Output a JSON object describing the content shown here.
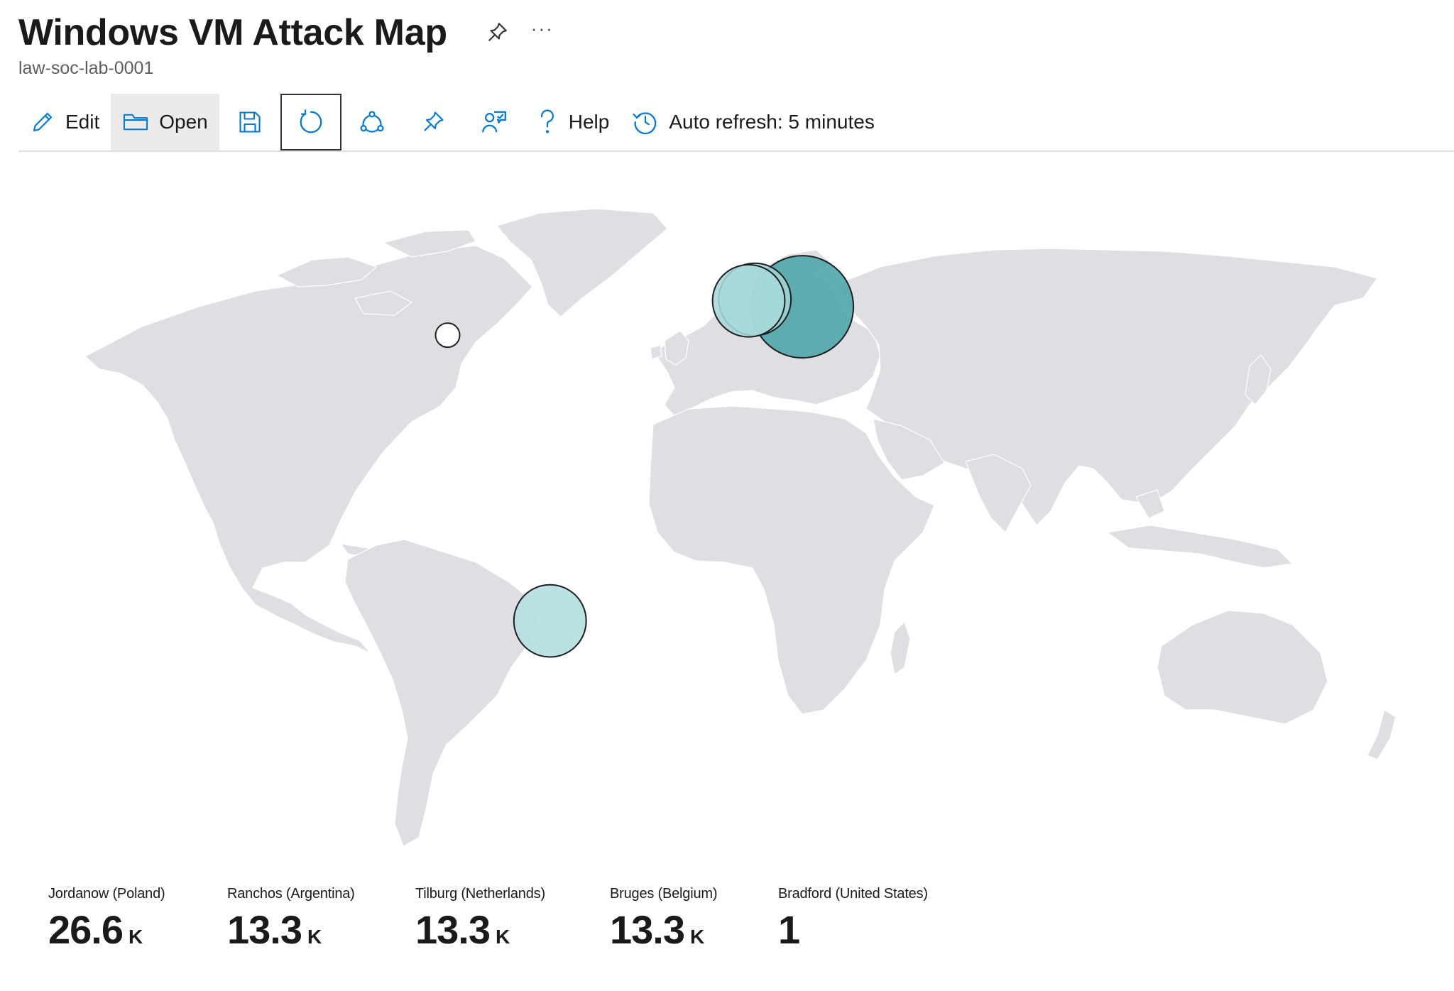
{
  "header": {
    "title": "Windows VM Attack Map",
    "subtitle": "law-soc-lab-0001",
    "pin_icon": "pin-icon",
    "more_label": "···"
  },
  "toolbar": {
    "edit_label": "Edit",
    "open_label": "Open",
    "help_label": "Help",
    "auto_refresh_label": "Auto refresh: 5 minutes",
    "icons": [
      "pencil-icon",
      "folder-icon",
      "save-icon",
      "refresh-icon",
      "share-icon",
      "pin-icon",
      "feedback-icon",
      "help-icon",
      "history-icon"
    ]
  },
  "colors": {
    "accent": "#0078d4",
    "land": "#dfdfe3",
    "bubble_dark": "#4aa5a8",
    "bubble_light": "#a6d8d9",
    "bubble_lighter": "#b4e0e0"
  },
  "map": {
    "locations": [
      {
        "name": "Jordanow (Poland)",
        "count": 26600,
        "lat": 49.6,
        "lon": 19.8
      },
      {
        "name": "Ranchos (Argentina)",
        "count": 13300,
        "lat": -35.5,
        "lon": -58.3
      },
      {
        "name": "Tilburg (Netherlands)",
        "count": 13300,
        "lat": 51.6,
        "lon": 5.1
      },
      {
        "name": "Bruges (Belgium)",
        "count": 13300,
        "lat": 51.2,
        "lon": 3.2
      },
      {
        "name": "Bradford (United States)",
        "count": 1,
        "lat": 41.9,
        "lon": -90.0
      }
    ]
  },
  "stats": [
    {
      "name": "Jordanow (Poland)",
      "value": "26.6",
      "unit": "K"
    },
    {
      "name": "Ranchos (Argentina)",
      "value": "13.3",
      "unit": "K"
    },
    {
      "name": "Tilburg (Netherlands)",
      "value": "13.3",
      "unit": "K"
    },
    {
      "name": "Bruges (Belgium)",
      "value": "13.3",
      "unit": "K"
    },
    {
      "name": "Bradford (United States)",
      "value": "1",
      "unit": ""
    }
  ]
}
